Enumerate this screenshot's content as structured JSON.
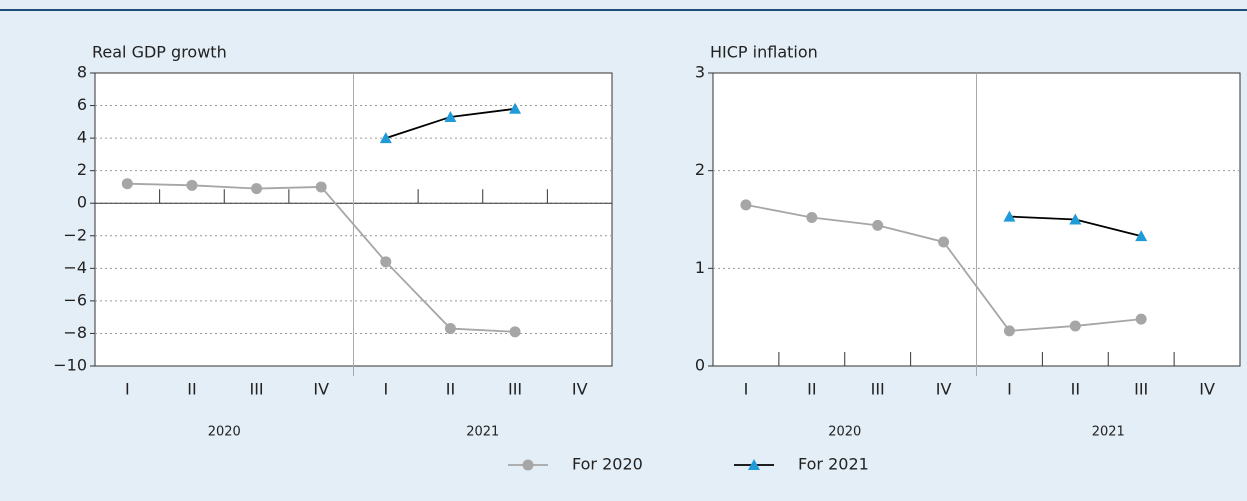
{
  "chart_data": [
    {
      "type": "line",
      "title": "Real GDP growth",
      "categories": [
        "I",
        "II",
        "III",
        "IV",
        "I",
        "II",
        "III",
        "IV"
      ],
      "year_labels": [
        "2020",
        "2021"
      ],
      "series": [
        {
          "name": "For 2020",
          "color": "#a6a6a6",
          "marker": "circle",
          "values": [
            1.2,
            1.1,
            0.9,
            1.0,
            -3.6,
            -7.7,
            -7.9,
            null
          ]
        },
        {
          "name": "For 2021",
          "color": "#1f9bd7",
          "marker": "triangle",
          "values": [
            null,
            null,
            null,
            null,
            4.0,
            5.3,
            5.8,
            null
          ]
        }
      ],
      "ylim": [
        -10,
        8
      ],
      "yticks": [
        {
          "value": -10,
          "label": "−10"
        },
        {
          "value": -8,
          "label": "−8"
        },
        {
          "value": -6,
          "label": "−6"
        },
        {
          "value": -4,
          "label": "−4"
        },
        {
          "value": -2,
          "label": "−2"
        },
        0,
        2,
        4,
        6,
        8
      ],
      "grid": true
    },
    {
      "type": "line",
      "title": "HICP inflation",
      "categories": [
        "I",
        "II",
        "III",
        "IV",
        "I",
        "II",
        "III",
        "IV"
      ],
      "year_labels": [
        "2020",
        "2021"
      ],
      "series": [
        {
          "color": "#a6a6a6",
          "marker": "circle",
          "values": [
            1.65,
            1.52,
            1.44,
            1.27,
            0.36,
            0.41,
            0.48,
            null
          ]
        },
        {
          "color": "#1f9bd7",
          "marker": "triangle",
          "values": [
            null,
            null,
            null,
            null,
            1.53,
            1.5,
            1.33,
            null
          ]
        }
      ],
      "ylim": [
        0,
        3
      ],
      "yticks": [
        0,
        1,
        2,
        3
      ],
      "grid": true
    }
  ]
}
